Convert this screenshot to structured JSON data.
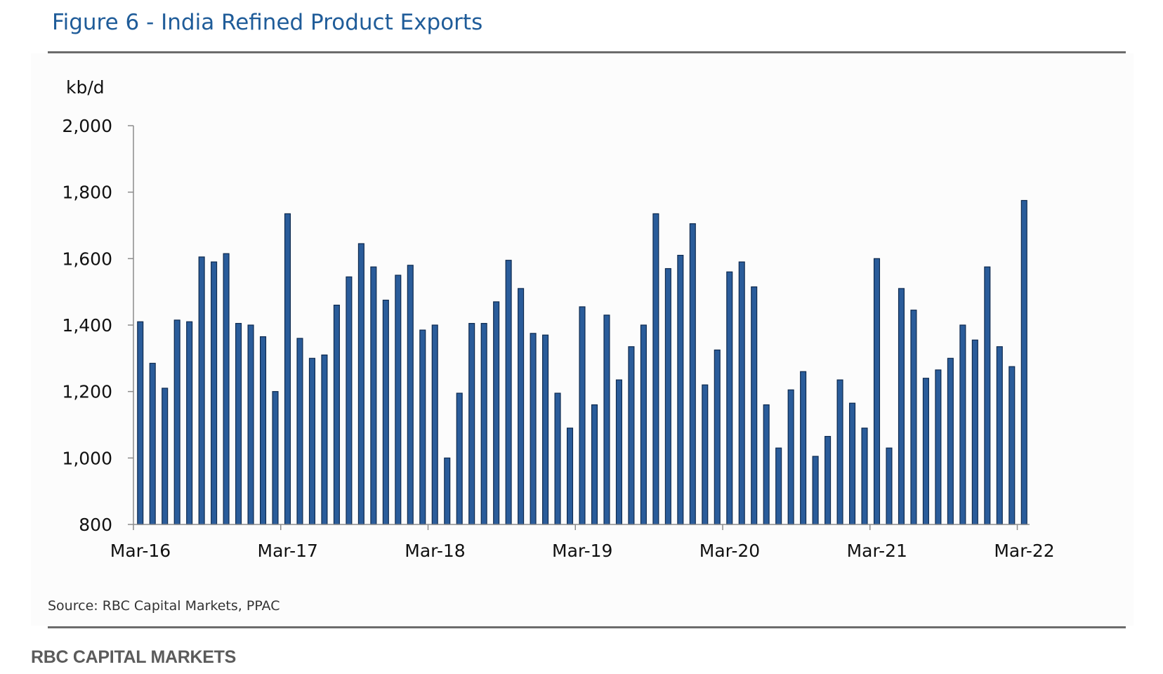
{
  "title": "Figure 6 - India Refined Product Exports",
  "source": "Source: RBC Capital Markets, PPAC",
  "brand": "RBC CAPITAL MARKETS",
  "colors": {
    "bar_fill": "#2a5c9a",
    "bar_stroke": "#0e2a4f",
    "title": "#1f5c99",
    "axis": "#8c8c8c"
  },
  "chart_data": {
    "type": "bar",
    "title": "Figure 6 - India Refined Product Exports",
    "xlabel": "",
    "ylabel": "kb/d",
    "ylim": [
      800,
      2000
    ],
    "yticks": [
      800,
      1000,
      1200,
      1400,
      1600,
      1800,
      2000
    ],
    "ytick_labels": [
      "800",
      "1,000",
      "1,200",
      "1,400",
      "1,600",
      "1,800",
      "2,000"
    ],
    "xtick_labels": [
      "Mar-16",
      "Mar-17",
      "Mar-18",
      "Mar-19",
      "Mar-20",
      "Mar-21",
      "Mar-22"
    ],
    "xtick_indices": [
      0,
      12,
      24,
      36,
      48,
      60,
      72
    ],
    "grid": false,
    "categories": [
      "Mar-16",
      "Apr-16",
      "May-16",
      "Jun-16",
      "Jul-16",
      "Aug-16",
      "Sep-16",
      "Oct-16",
      "Nov-16",
      "Dec-16",
      "Jan-17",
      "Feb-17",
      "Mar-17",
      "Apr-17",
      "May-17",
      "Jun-17",
      "Jul-17",
      "Aug-17",
      "Sep-17",
      "Oct-17",
      "Nov-17",
      "Dec-17",
      "Jan-18",
      "Feb-18",
      "Mar-18",
      "Apr-18",
      "May-18",
      "Jun-18",
      "Jul-18",
      "Aug-18",
      "Sep-18",
      "Oct-18",
      "Nov-18",
      "Dec-18",
      "Jan-19",
      "Feb-19",
      "Mar-19",
      "Apr-19",
      "May-19",
      "Jun-19",
      "Jul-19",
      "Aug-19",
      "Sep-19",
      "Oct-19",
      "Nov-19",
      "Dec-19",
      "Jan-20",
      "Feb-20",
      "Mar-20",
      "Apr-20",
      "May-20",
      "Jun-20",
      "Jul-20",
      "Aug-20",
      "Sep-20",
      "Oct-20",
      "Nov-20",
      "Dec-20",
      "Jan-21",
      "Feb-21",
      "Mar-21",
      "Apr-21",
      "May-21",
      "Jun-21",
      "Jul-21",
      "Aug-21",
      "Sep-21",
      "Oct-21",
      "Nov-21",
      "Dec-21",
      "Jan-22",
      "Feb-22",
      "Mar-22"
    ],
    "values": [
      1410,
      1285,
      1210,
      1415,
      1410,
      1605,
      1590,
      1615,
      1405,
      1400,
      1365,
      1200,
      1735,
      1360,
      1300,
      1310,
      1460,
      1545,
      1645,
      1575,
      1475,
      1550,
      1580,
      1385,
      1400,
      1000,
      1195,
      1405,
      1405,
      1470,
      1595,
      1510,
      1375,
      1370,
      1195,
      1090,
      1455,
      1160,
      1430,
      1235,
      1335,
      1400,
      1735,
      1570,
      1610,
      1705,
      1220,
      1325,
      1560,
      1590,
      1515,
      1160,
      1030,
      1205,
      1260,
      1005,
      1065,
      1235,
      1165,
      1090,
      1600,
      1030,
      1510,
      1445,
      1240,
      1265,
      1300,
      1400,
      1355,
      1575,
      1335,
      1275,
      1775
    ]
  }
}
